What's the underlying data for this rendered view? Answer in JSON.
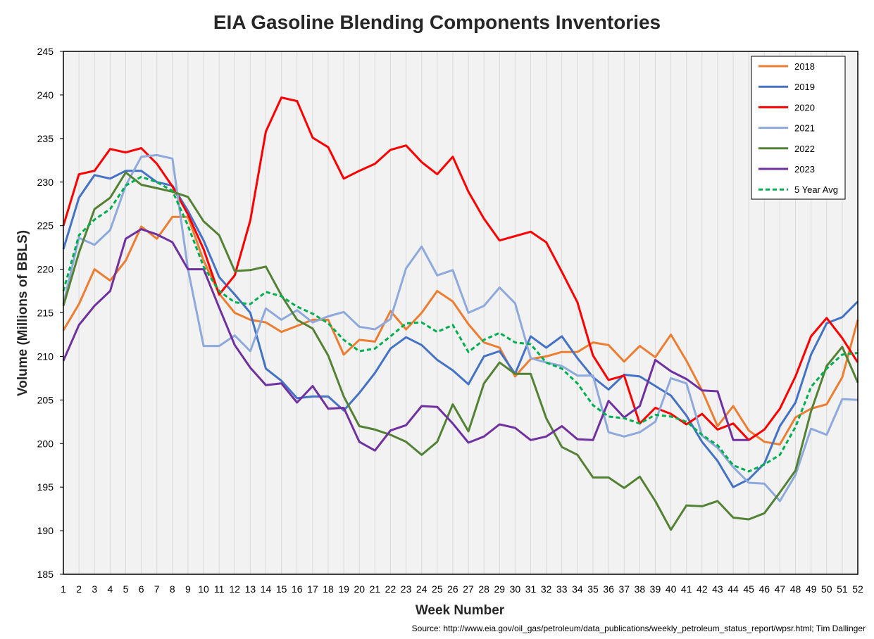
{
  "chart_data": {
    "type": "line",
    "title": "EIA Gasoline Blending Components Inventories",
    "xlabel": "Week Number",
    "ylabel": "Volume (Millions of BBLS)",
    "source": "Source: http://www.eia.gov/oil_gas/petroleum/data_publications/weekly_petroleum_status_report/wpsr.html; Tim Dallinger",
    "xlim": [
      1,
      52
    ],
    "ylim": [
      185,
      245
    ],
    "ytick_step": 5,
    "grid": "vertical",
    "legend_position": "top-right",
    "x": [
      1,
      2,
      3,
      4,
      5,
      6,
      7,
      8,
      9,
      10,
      11,
      12,
      13,
      14,
      15,
      16,
      17,
      18,
      19,
      20,
      21,
      22,
      23,
      24,
      25,
      26,
      27,
      28,
      29,
      30,
      31,
      32,
      33,
      34,
      35,
      36,
      37,
      38,
      39,
      40,
      41,
      42,
      43,
      44,
      45,
      46,
      47,
      48,
      49,
      50,
      51,
      52
    ],
    "series": [
      {
        "name": "2018",
        "color": "#ED7D31",
        "dash": false,
        "values": [
          213,
          216,
          220,
          218.7,
          221,
          224.9,
          223.5,
          226,
          226,
          221,
          217.2,
          215,
          214.2,
          213.9,
          212.8,
          213.5,
          214.2,
          214.2,
          210.2,
          211.9,
          211.7,
          215.2,
          213.1,
          215,
          217.5,
          216.3,
          213.7,
          211.6,
          211,
          207.7,
          209.7,
          210,
          210.5,
          210.5,
          211.6,
          211.3,
          209.4,
          211.2,
          209.9,
          212.5,
          209.5,
          206.1,
          202,
          204.3,
          201.5,
          200.2,
          199.9,
          203,
          204,
          204.5,
          207.6,
          214.2
        ]
      },
      {
        "name": "2019",
        "color": "#4472C4",
        "dash": false,
        "values": [
          222.3,
          228.2,
          230.8,
          230.4,
          231.3,
          231.3,
          230,
          229.6,
          226.7,
          223.3,
          219.1,
          217.1,
          215,
          208.6,
          207.2,
          205.2,
          205.4,
          205.4,
          203.8,
          205.8,
          208.1,
          210.9,
          212.2,
          211.3,
          209.6,
          208.4,
          206.8,
          210,
          210.6,
          208,
          212.3,
          211,
          212.3,
          209.8,
          207.6,
          206.2,
          207.9,
          207.7,
          206.6,
          205.5,
          203.2,
          200.2,
          198,
          195,
          195.9,
          197.7,
          202,
          204.7,
          210.2,
          213.8,
          214.5,
          216.3
        ]
      },
      {
        "name": "2020",
        "color": "#FF0000",
        "dash": false,
        "values": [
          225,
          230.9,
          231.3,
          233.8,
          233.4,
          233.9,
          232.1,
          229.5,
          226.3,
          222.3,
          217.1,
          219.3,
          225.6,
          235.8,
          239.7,
          239.3,
          235.1,
          234,
          230.4,
          231.3,
          232.1,
          233.7,
          234.2,
          232.3,
          230.9,
          232.9,
          228.9,
          225.8,
          223.3,
          223.8,
          224.3,
          223.1,
          219.7,
          216.2,
          210.1,
          207.3,
          207.8,
          202.3,
          204.1,
          203.4,
          202.2,
          203.4,
          201.6,
          202.3,
          200.4,
          201.6,
          204,
          207.7,
          212.3,
          214.4,
          212.1,
          209.3
        ]
      },
      {
        "name": "2021",
        "color": "#8EA9DB",
        "dash": false,
        "values": [
          216,
          223.6,
          222.8,
          224.5,
          229.6,
          232.9,
          233.1,
          232.7,
          220,
          211.2,
          211.2,
          212.4,
          210.6,
          215.5,
          214.2,
          215.3,
          213.9,
          214.6,
          215.1,
          213.4,
          213.1,
          214.3,
          220.1,
          222.6,
          219.3,
          219.9,
          215,
          215.8,
          217.9,
          216.1,
          209.8,
          209.3,
          208.9,
          207.8,
          207.8,
          201.3,
          200.8,
          201.3,
          202.5,
          207.5,
          206.9,
          200.9,
          199.5,
          197.3,
          195.5,
          195.4,
          193.4,
          196.4,
          201.7,
          201,
          205.1,
          205
        ]
      },
      {
        "name": "2022",
        "color": "#548235",
        "dash": false,
        "values": [
          215.8,
          221.9,
          226.9,
          228.2,
          231.1,
          229.7,
          229.3,
          228.9,
          228.3,
          225.5,
          223.9,
          219.8,
          219.9,
          220.3,
          217,
          214.2,
          213.2,
          210.1,
          205.4,
          202,
          201.6,
          201,
          200.2,
          198.7,
          200.2,
          204.5,
          201.4,
          206.9,
          209.3,
          208,
          208,
          202.9,
          199.6,
          198.7,
          196.1,
          196.1,
          194.9,
          196.2,
          193.4,
          190.1,
          192.9,
          192.8,
          193.4,
          191.5,
          191.3,
          192,
          194.4,
          196.9,
          203.7,
          208.9,
          211.1,
          207
        ]
      },
      {
        "name": "2023",
        "color": "#7030A0",
        "dash": false,
        "values": [
          209.5,
          213.6,
          215.8,
          217.5,
          223.5,
          224.6,
          224,
          223.1,
          220,
          220,
          215.6,
          211.3,
          208.7,
          206.7,
          206.9,
          204.7,
          206.6,
          204,
          204.1,
          200.2,
          199.2,
          201.5,
          202.1,
          204.3,
          204.2,
          202.3,
          200.1,
          200.8,
          202.2,
          201.8,
          200.4,
          200.8,
          202,
          200.5,
          200.4,
          204.9,
          203,
          204.3,
          209.6,
          208.3,
          207.4,
          206.1,
          206,
          200.4,
          200.4,
          null,
          null,
          null,
          null,
          null,
          null,
          null
        ]
      },
      {
        "name": "5 Year Avg",
        "color": "#00B050",
        "dash": true,
        "values": [
          217.5,
          223.9,
          225.7,
          226.9,
          229.6,
          230.6,
          230,
          229,
          225,
          220.3,
          217.5,
          216.2,
          216,
          217.4,
          216.9,
          215.7,
          214.9,
          213.8,
          211.9,
          210.6,
          210.9,
          212.3,
          213.8,
          213.9,
          212.8,
          213.6,
          210.5,
          211.9,
          212.7,
          211.6,
          211.4,
          209.3,
          208.6,
          206.9,
          204.4,
          203.1,
          202.9,
          202.3,
          203.3,
          203.1,
          202.5,
          201,
          199.8,
          197.5,
          196.8,
          197.6,
          198.7,
          201.9,
          206.5,
          208.6,
          210.2,
          210.4
        ]
      }
    ]
  }
}
